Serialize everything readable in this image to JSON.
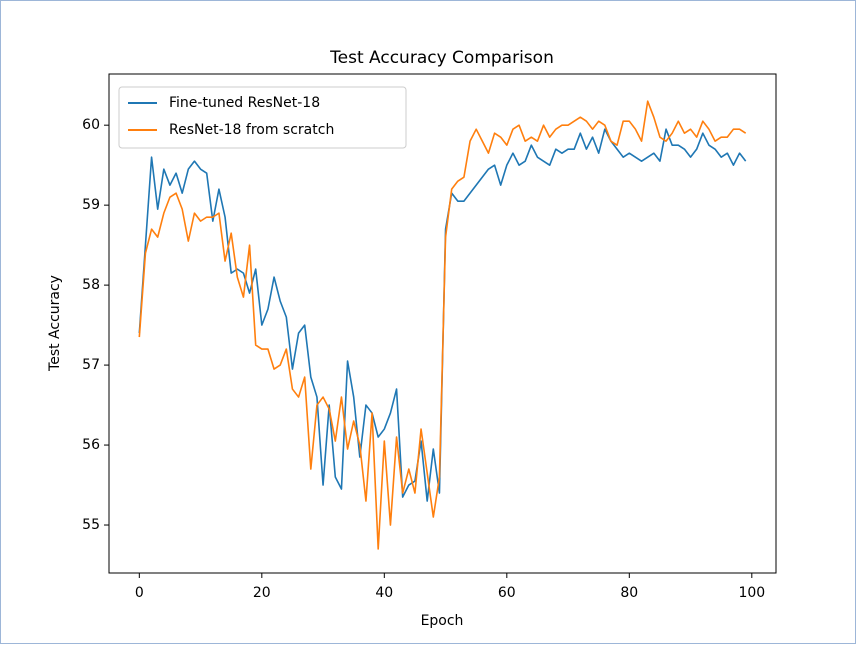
{
  "chart_data": {
    "type": "line",
    "title": "Test Accuracy Comparison",
    "x_label": "Epoch",
    "y_label": "Test Accuracy",
    "x": [
      0,
      1,
      2,
      3,
      4,
      5,
      6,
      7,
      8,
      9,
      10,
      11,
      12,
      13,
      14,
      15,
      16,
      17,
      18,
      19,
      20,
      21,
      22,
      23,
      24,
      25,
      26,
      27,
      28,
      29,
      30,
      31,
      32,
      33,
      34,
      35,
      36,
      37,
      38,
      39,
      40,
      41,
      42,
      43,
      44,
      45,
      46,
      47,
      48,
      49,
      50,
      51,
      52,
      53,
      54,
      55,
      56,
      57,
      58,
      59,
      60,
      61,
      62,
      63,
      64,
      65,
      66,
      67,
      68,
      69,
      70,
      71,
      72,
      73,
      74,
      75,
      76,
      77,
      78,
      79,
      80,
      81,
      82,
      83,
      84,
      85,
      86,
      87,
      88,
      89,
      90,
      91,
      92,
      93,
      94,
      95,
      96,
      97,
      98,
      99
    ],
    "series": [
      {
        "name": "Fine-tuned ResNet-18",
        "color": "#1f77b4",
        "values": [
          57.4,
          58.5,
          59.6,
          58.95,
          59.45,
          59.25,
          59.4,
          59.15,
          59.45,
          59.55,
          59.45,
          59.4,
          58.8,
          59.2,
          58.85,
          58.15,
          58.2,
          58.15,
          57.9,
          58.2,
          57.5,
          57.7,
          58.1,
          57.8,
          57.6,
          56.95,
          57.4,
          57.5,
          56.85,
          56.6,
          55.5,
          56.5,
          55.6,
          55.45,
          57.05,
          56.6,
          55.85,
          56.5,
          56.4,
          56.1,
          56.2,
          56.4,
          56.7,
          55.35,
          55.5,
          55.55,
          56.05,
          55.3,
          55.95,
          55.4,
          58.7,
          59.15,
          59.05,
          59.05,
          59.15,
          59.25,
          59.35,
          59.45,
          59.5,
          59.25,
          59.5,
          59.65,
          59.5,
          59.55,
          59.75,
          59.6,
          59.55,
          59.5,
          59.7,
          59.65,
          59.7,
          59.7,
          59.9,
          59.7,
          59.85,
          59.65,
          59.95,
          59.8,
          59.7,
          59.6,
          59.65,
          59.6,
          59.55,
          59.6,
          59.65,
          59.55,
          59.95,
          59.75,
          59.75,
          59.7,
          59.6,
          59.7,
          59.9,
          59.75,
          59.7,
          59.6,
          59.65,
          59.5,
          59.65,
          59.55
        ]
      },
      {
        "name": "ResNet-18 from scratch",
        "color": "#ff7f0e",
        "values": [
          57.35,
          58.4,
          58.7,
          58.6,
          58.9,
          59.1,
          59.15,
          58.95,
          58.55,
          58.9,
          58.8,
          58.85,
          58.85,
          58.9,
          58.3,
          58.65,
          58.1,
          57.85,
          58.5,
          57.25,
          57.2,
          57.2,
          56.95,
          57.0,
          57.2,
          56.7,
          56.6,
          56.85,
          55.7,
          56.5,
          56.6,
          56.45,
          56.05,
          56.6,
          55.95,
          56.3,
          56.0,
          55.3,
          56.4,
          54.7,
          56.05,
          55.0,
          56.1,
          55.4,
          55.7,
          55.4,
          56.2,
          55.65,
          55.1,
          55.6,
          58.6,
          59.2,
          59.3,
          59.35,
          59.8,
          59.95,
          59.8,
          59.65,
          59.9,
          59.85,
          59.75,
          59.95,
          60.0,
          59.8,
          59.85,
          59.8,
          60.0,
          59.85,
          59.95,
          60.0,
          60.0,
          60.05,
          60.1,
          60.05,
          59.95,
          60.05,
          60.0,
          59.8,
          59.75,
          60.05,
          60.05,
          59.95,
          59.8,
          60.3,
          60.1,
          59.85,
          59.8,
          59.9,
          60.05,
          59.9,
          59.95,
          59.85,
          60.05,
          59.95,
          59.8,
          59.85,
          59.85,
          59.95,
          59.95,
          59.9
        ]
      }
    ],
    "xlim": [
      -4.95,
      103.95
    ],
    "xticks": [
      0,
      20,
      40,
      60,
      80,
      100
    ],
    "ylim": [
      54.4,
      60.64
    ],
    "yticks": [
      55,
      56,
      57,
      58,
      59,
      60
    ],
    "grid": false,
    "legend": "upper left"
  }
}
